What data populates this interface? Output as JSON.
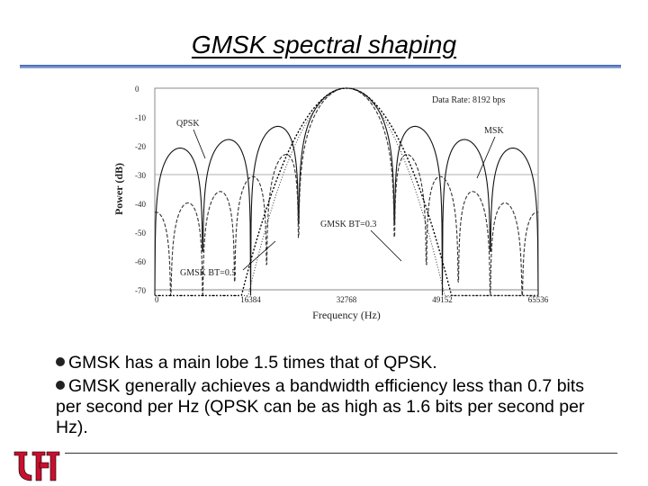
{
  "slide": {
    "title": "GMSK spectral shaping",
    "bullets": [
      "GMSK has a main lobe 1.5 times that of QPSK.",
      "GMSK generally achieves a bandwidth efficiency less than 0.7 bits per second per Hz (QPSK can be as high as 1.6 bits per second per Hz)."
    ],
    "logo_text": "UH",
    "colors": {
      "title_rule": "#3a5fb0",
      "logo_red": "#c8102e"
    }
  },
  "chart_data": {
    "type": "line",
    "title": "",
    "xlabel": "Frequency (Hz)",
    "ylabel": "Power (dB)",
    "xlim": [
      0,
      65536
    ],
    "ylim": [
      -70,
      0
    ],
    "xticks": [
      0,
      16384,
      32768,
      49152,
      65536
    ],
    "xtick_labels": [
      "0",
      "16384",
      "32768",
      "49152",
      "65536"
    ],
    "yticks": [
      0,
      -10,
      -20,
      -30,
      -40,
      -50,
      -60,
      -70
    ],
    "ytick_labels": [
      "0",
      "-10",
      "-20",
      "-30",
      "-40",
      "-50",
      "-60",
      "-70"
    ],
    "grid": "horizontal at -30",
    "annotations": [
      {
        "text": "Data Rate: 8192 bps"
      },
      {
        "text": "QPSK"
      },
      {
        "text": "MSK"
      },
      {
        "text": "GMSK BT=0.3"
      },
      {
        "text": "GMSK BT=0.5"
      }
    ],
    "series": [
      {
        "name": "QPSK",
        "center": 32768,
        "lobe_width": 8192
      },
      {
        "name": "MSK",
        "center": 32768,
        "lobe_width": 12288
      },
      {
        "name": "GMSK BT=0.3",
        "center": 32768,
        "lobe_width": 8192
      },
      {
        "name": "GMSK BT=0.5",
        "center": 32768,
        "lobe_width": 8192
      }
    ]
  }
}
